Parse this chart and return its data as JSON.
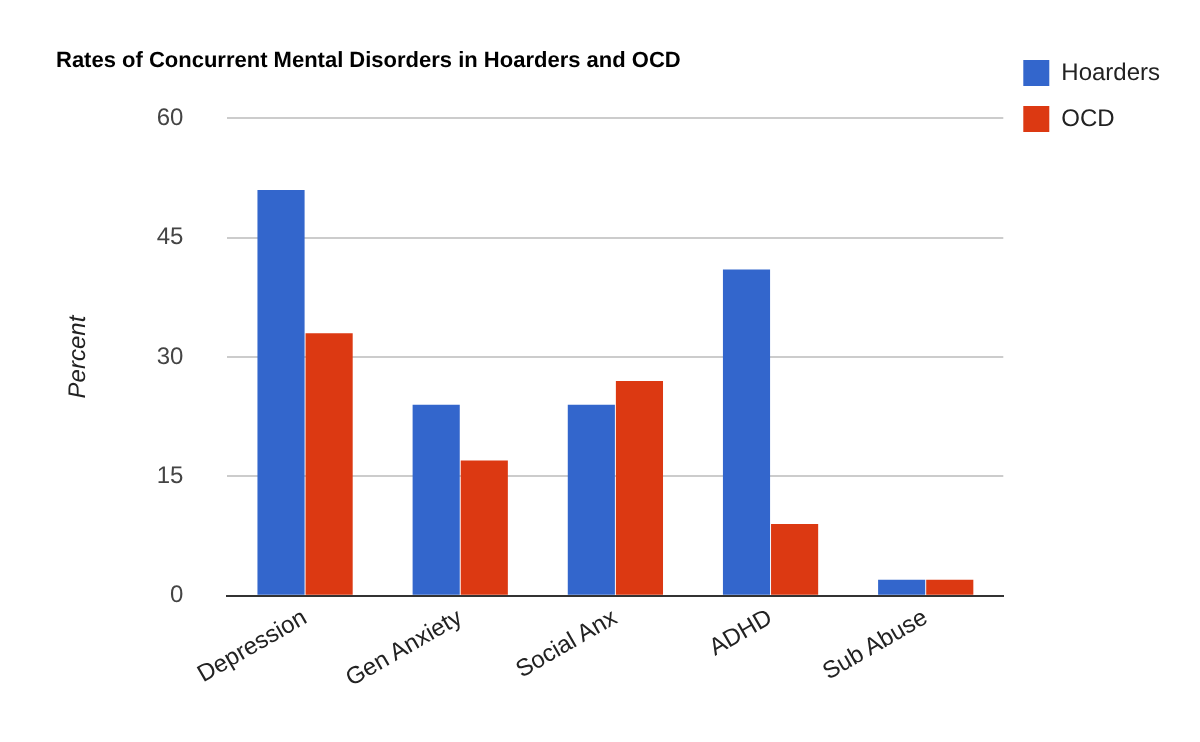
{
  "chart_data": {
    "type": "bar",
    "title": "Rates of Concurrent Mental Disorders in Hoarders and OCD",
    "ylabel": "Percent",
    "categories": [
      "Depression",
      "Gen Anxiety",
      "Social Anx",
      "ADHD",
      "Sub Abuse"
    ],
    "series": [
      {
        "name": "Hoarders",
        "color": "#3366cc",
        "values": [
          51,
          24,
          24,
          41,
          2
        ]
      },
      {
        "name": "OCD",
        "color": "#dc3912",
        "values": [
          33,
          17,
          27,
          9,
          2
        ]
      }
    ],
    "ylim": [
      0,
      60
    ],
    "yticks": [
      0,
      15,
      30,
      45,
      60
    ],
    "grid": "y",
    "legend": "top right"
  }
}
